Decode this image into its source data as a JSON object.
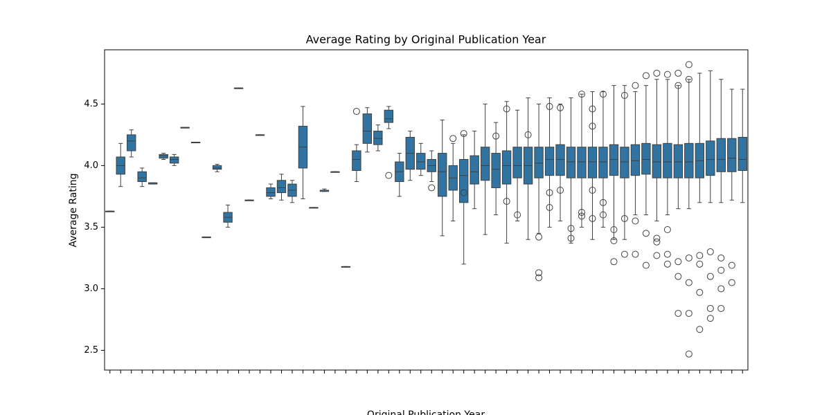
{
  "chart_data": {
    "type": "box",
    "title": "Average Rating by Original Publication Year",
    "xlabel": "Original Publication Year",
    "ylabel": "Average Rating",
    "color": "#3274a1",
    "line_color": "#3f3f3f",
    "ylim": [
      2.34,
      4.94
    ],
    "yticks": [
      2.5,
      {
        "value": 3,
        "label": "3.0"
      },
      3.5,
      {
        "value": 4,
        "label": "4.0"
      },
      4.5
    ],
    "categories": [
      null,
      null,
      null,
      null,
      null,
      null,
      null,
      null,
      null,
      null,
      null,
      null,
      null,
      null,
      null,
      null,
      null,
      null,
      null,
      null,
      null,
      null,
      null,
      null,
      null,
      null,
      null,
      null,
      null,
      null,
      null,
      null,
      null,
      null,
      null,
      null,
      null,
      null,
      null,
      null,
      null,
      null,
      null,
      null,
      null,
      null,
      null,
      null,
      null,
      null,
      null,
      null,
      null,
      null,
      null,
      null,
      null,
      null,
      null,
      null
    ],
    "values": [
      [
        3.63,
        3.63,
        3.63,
        3.63,
        3.63
      ],
      [
        3.83,
        3.93,
        4.0,
        4.07,
        4.18
      ],
      [
        4.07,
        4.12,
        4.2,
        4.25,
        4.29
      ],
      [
        3.83,
        3.87,
        3.9,
        3.95,
        3.98
      ],
      [
        3.85,
        3.85,
        3.86,
        3.86,
        3.86
      ],
      [
        4.05,
        4.06,
        4.08,
        4.09,
        4.1
      ],
      [
        4.0,
        4.02,
        4.05,
        4.07,
        4.09
      ],
      [
        4.31,
        4.31,
        4.31,
        4.31,
        4.31
      ],
      [
        4.19,
        4.19,
        4.19,
        4.19,
        4.19
      ],
      [
        3.42,
        3.42,
        3.42,
        3.42,
        3.42
      ],
      [
        3.95,
        3.97,
        3.98,
        4.0,
        4.01
      ],
      [
        3.5,
        3.54,
        3.58,
        3.62,
        3.68
      ],
      [
        4.63,
        4.63,
        4.63,
        4.63,
        4.63
      ],
      [
        3.72,
        3.72,
        3.72,
        3.72,
        3.72
      ],
      [
        4.25,
        4.25,
        4.25,
        4.25,
        4.25
      ],
      [
        3.73,
        3.75,
        3.78,
        3.82,
        3.85
      ],
      [
        3.72,
        3.78,
        3.82,
        3.88,
        3.93
      ],
      [
        3.7,
        3.75,
        3.8,
        3.85,
        3.88
      ],
      [
        3.73,
        3.98,
        4.15,
        4.32,
        4.48
      ],
      [
        3.66,
        3.66,
        3.66,
        3.66,
        3.66
      ],
      [
        3.79,
        3.79,
        3.8,
        3.8,
        3.81
      ],
      [
        3.95,
        3.95,
        3.95,
        3.95,
        3.95
      ],
      [
        3.18,
        3.18,
        3.18,
        3.18,
        3.18
      ],
      [
        3.87,
        3.96,
        4.05,
        4.12,
        4.17
      ],
      [
        4.11,
        4.18,
        4.28,
        4.42,
        4.47
      ],
      [
        4.12,
        4.17,
        4.22,
        4.28,
        4.33
      ],
      [
        4.3,
        4.35,
        4.38,
        4.45,
        4.48
      ],
      [
        3.75,
        3.87,
        3.95,
        4.03,
        4.1
      ],
      [
        3.88,
        3.97,
        4.1,
        4.23,
        4.28
      ],
      [
        3.92,
        3.97,
        4.03,
        4.1,
        4.18
      ],
      [
        3.87,
        3.95,
        4.0,
        4.05,
        4.12
      ],
      [
        3.43,
        3.75,
        3.95,
        4.1,
        4.37
      ],
      [
        3.55,
        3.8,
        3.9,
        4.0,
        4.18
      ],
      [
        3.2,
        3.7,
        3.92,
        4.05,
        4.25
      ],
      [
        3.65,
        3.85,
        3.95,
        4.08,
        4.28
      ],
      [
        3.44,
        3.88,
        4.0,
        4.15,
        4.5
      ],
      [
        3.6,
        3.82,
        3.97,
        4.1,
        4.35
      ],
      [
        3.37,
        3.85,
        4.0,
        4.12,
        4.52
      ],
      [
        3.55,
        3.9,
        4.0,
        4.15,
        4.45
      ],
      [
        3.4,
        3.85,
        4.0,
        4.15,
        4.55
      ],
      [
        3.45,
        3.9,
        4.02,
        4.15,
        4.5
      ],
      [
        3.5,
        3.92,
        4.05,
        4.15,
        4.55
      ],
      [
        3.55,
        3.92,
        4.05,
        4.17,
        4.5
      ],
      [
        3.37,
        3.9,
        4.03,
        4.15,
        4.55
      ],
      [
        3.5,
        3.9,
        4.03,
        4.15,
        4.58
      ],
      [
        3.4,
        3.9,
        4.03,
        4.15,
        4.6
      ],
      [
        3.5,
        3.9,
        4.03,
        4.15,
        4.6
      ],
      [
        3.4,
        3.92,
        4.05,
        4.17,
        4.65
      ],
      [
        3.4,
        3.9,
        4.03,
        4.15,
        4.65
      ],
      [
        3.6,
        3.92,
        4.04,
        4.17,
        4.6
      ],
      [
        3.6,
        3.93,
        4.05,
        4.18,
        4.65
      ],
      [
        3.55,
        3.9,
        4.03,
        4.17,
        4.7
      ],
      [
        3.6,
        3.9,
        4.03,
        4.18,
        4.7
      ],
      [
        3.65,
        3.9,
        4.03,
        4.17,
        4.65
      ],
      [
        3.65,
        3.9,
        4.03,
        4.18,
        4.7
      ],
      [
        3.7,
        3.9,
        4.04,
        4.18,
        4.75
      ],
      [
        3.7,
        3.92,
        4.05,
        4.2,
        4.77
      ],
      [
        3.7,
        3.95,
        4.05,
        4.22,
        4.7
      ],
      [
        3.72,
        3.95,
        4.06,
        4.22,
        4.62
      ],
      [
        3.7,
        3.96,
        4.05,
        4.23,
        4.62
      ]
    ],
    "outliers": [
      [],
      [],
      [],
      [],
      [],
      [],
      [],
      [],
      [],
      [],
      [],
      [],
      [],
      [],
      [],
      [],
      [],
      [],
      [],
      [],
      [],
      [],
      [],
      [
        4.44
      ],
      [],
      [],
      [
        3.92
      ],
      [],
      [],
      [],
      [
        3.82
      ],
      [],
      [
        4.22
      ],
      [
        4.26,
        3.78
      ],
      [],
      [],
      [
        4.24
      ],
      [
        4.46,
        3.71
      ],
      [
        3.6
      ],
      [
        4.25
      ],
      [
        3.09,
        3.13,
        3.42
      ],
      [
        4.48,
        3.78,
        3.66
      ],
      [
        4.47,
        3.8
      ],
      [
        3.41,
        3.49
      ],
      [
        4.58,
        3.59,
        3.62
      ],
      [
        4.32,
        3.8,
        3.57,
        4.46
      ],
      [
        4.58,
        3.7,
        3.6
      ],
      [
        3.48,
        3.39,
        3.22
      ],
      [
        4.57,
        3.57,
        3.28
      ],
      [
        4.65,
        3.55,
        3.28
      ],
      [
        4.73,
        3.45,
        3.19
      ],
      [
        4.75,
        3.38,
        3.27,
        3.41
      ],
      [
        4.74,
        3.48,
        3.28,
        3.2
      ],
      [
        4.75,
        4.65,
        3.22,
        3.1,
        2.8
      ],
      [
        4.82,
        4.7,
        3.25,
        3.05,
        2.8,
        2.47
      ],
      [
        3.2,
        2.97,
        2.67,
        3.27
      ],
      [
        3.3,
        3.1,
        2.76,
        2.84
      ],
      [
        3.25,
        3.0,
        2.84,
        3.15
      ],
      [
        3.19,
        3.05
      ],
      []
    ]
  }
}
